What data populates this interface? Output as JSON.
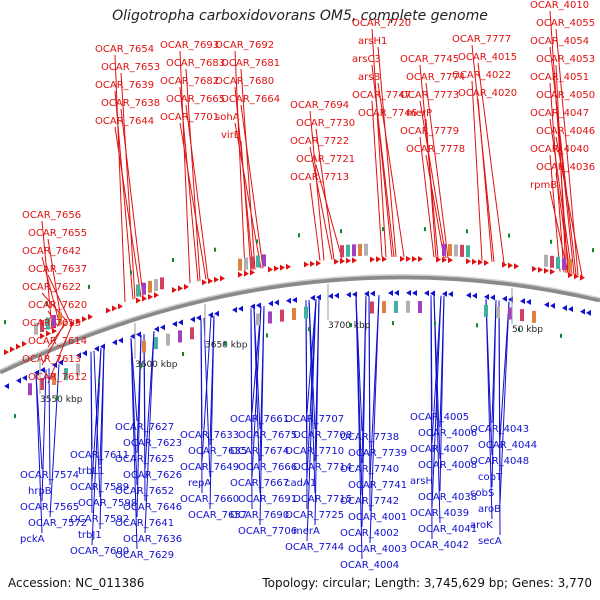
{
  "title": "Oligotropha carboxidovorans OM5, complete genome",
  "footer": {
    "accession": "Accession: NC_011386",
    "summary": "Topology: circular; Length: 3,745,629 bp; Genes: 3,770"
  },
  "colors": {
    "forward": "#e01010",
    "reverse": "#1010d0",
    "backbone": "#808080",
    "tick": "#0a8a2a"
  },
  "ticks": [
    "3550 kbp",
    "3600 kbp",
    "3650 kbp",
    "3700 kbp",
    "50 kbp"
  ],
  "forward_labels": [
    "OCAR_7656",
    "OCAR_7655",
    "OCAR_7642",
    "OCAR_7637",
    "OCAR_7622",
    "OCAR_7620",
    "OCAR_7615",
    "OCAR_7614",
    "OCAR_7613",
    "OCAR_7612",
    "OCAR_7654",
    "OCAR_7653",
    "OCAR_7639",
    "OCAR_7638",
    "OCAR_7644",
    "OCAR_7693",
    "OCAR_7683",
    "OCAR_7682",
    "OCAR_7665",
    "OCAR_7701",
    "OCAR_7692",
    "OCAR_7681",
    "OCAR_7680",
    "OCAR_7664",
    "sohA",
    "virB",
    "OCAR_7694",
    "OCAR_7730",
    "OCAR_7722",
    "OCAR_7721",
    "OCAR_7713",
    "OCAR_7720",
    "arsH1",
    "arsC3",
    "arsB",
    "OCAR_7747",
    "OCAR_7746",
    "OCAR_7745",
    "OCAR_7774",
    "OCAR_7773",
    "merP",
    "OCAR_7779",
    "OCAR_7778",
    "OCAR_7777",
    "OCAR_4015",
    "OCAR_4022",
    "OCAR_4020",
    "OCAR_4010",
    "OCAR_4055",
    "OCAR_4054",
    "OCAR_4053",
    "OCAR_4051",
    "OCAR_4050",
    "OCAR_4047",
    "OCAR_4046",
    "OCAR_4040",
    "OCAR_4036",
    "rpmB"
  ],
  "reverse_labels": [
    "OCAR_7574",
    "hrpB",
    "OCAR_7565",
    "OCAR_7572",
    "pckA",
    "OCAR_7611",
    "trbL1",
    "OCAR_7589",
    "OCAR_7598",
    "OCAR_7592",
    "trbJ1",
    "OCAR_7600",
    "OCAR_7627",
    "OCAR_7623",
    "OCAR_7625",
    "OCAR_7626",
    "OCAR_7652",
    "OCAR_7646",
    "OCAR_7641",
    "OCAR_7636",
    "OCAR_7629",
    "OCAR_7633",
    "OCAR_7635",
    "OCAR_7649",
    "repA",
    "OCAR_7660",
    "OCAR_7657",
    "OCAR_7661",
    "OCAR_7675",
    "OCAR_7674",
    "OCAR_7666",
    "OCAR_7667",
    "OCAR_7691",
    "OCAR_7690",
    "OCAR_7706",
    "OCAR_7707",
    "OCAR_7708",
    "OCAR_7710",
    "OCAR_7714",
    "cadA1",
    "OCAR_7715",
    "OCAR_7725",
    "merA",
    "OCAR_7744",
    "OCAR_7738",
    "OCAR_7739",
    "OCAR_7740",
    "OCAR_7741",
    "OCAR_7742",
    "OCAR_4001",
    "OCAR_4002",
    "OCAR_4003",
    "OCAR_4004",
    "OCAR_4005",
    "OCAR_4006",
    "OCAR_4007",
    "OCAR_4008",
    "arsH",
    "OCAR_4038",
    "OCAR_4039",
    "OCAR_4041",
    "OCAR_4042",
    "OCAR_4043",
    "OCAR_4044",
    "OCAR_4048",
    "cobT",
    "cobS",
    "aroB",
    "aroK",
    "secA"
  ]
}
